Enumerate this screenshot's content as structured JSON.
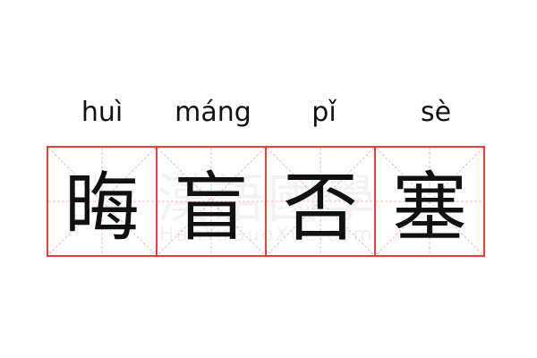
{
  "word": [
    {
      "pinyin": "huì",
      "hanzi": "晦"
    },
    {
      "pinyin": "máng",
      "hanzi": "盲"
    },
    {
      "pinyin": "pǐ",
      "hanzi": "否"
    },
    {
      "pinyin": "sè",
      "hanzi": "塞"
    }
  ],
  "watermark": {
    "text": "漢語國學",
    "sub": "HanYuGuoXue.com"
  },
  "colors": {
    "border": "#e8413a",
    "guide": "#f4a9a5",
    "text": "#111111"
  }
}
